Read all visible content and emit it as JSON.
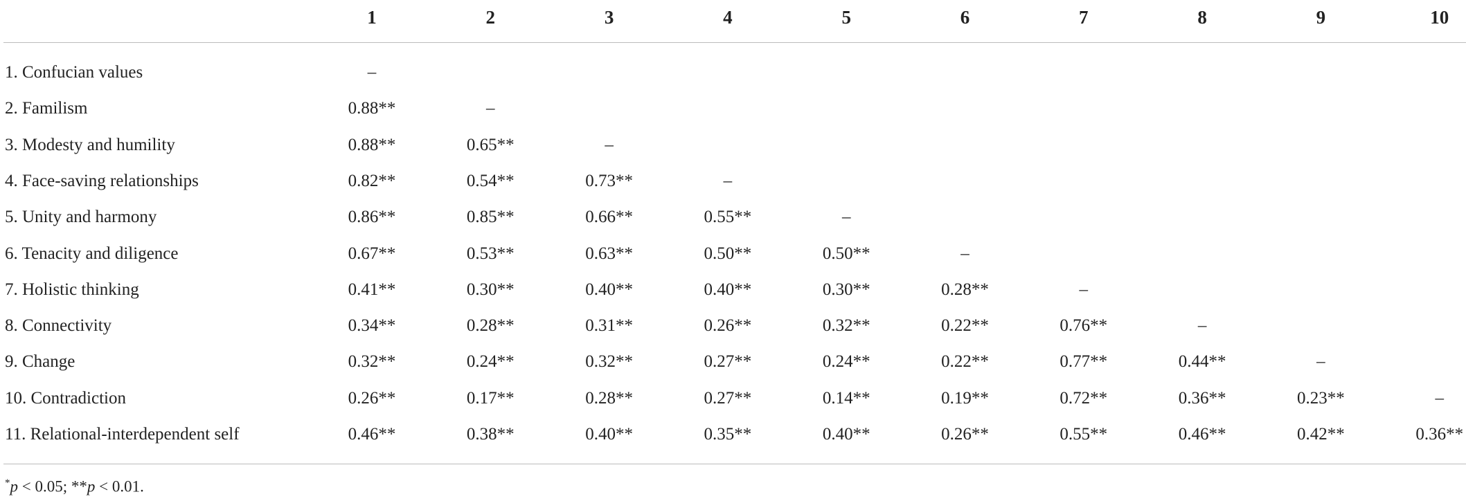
{
  "table": {
    "columns": [
      "1",
      "2",
      "3",
      "4",
      "5",
      "6",
      "7",
      "8",
      "9",
      "10"
    ],
    "rows": [
      {
        "label": "1. Confucian values",
        "cells": [
          "–"
        ]
      },
      {
        "label": "2. Familism",
        "cells": [
          "0.88**",
          "–"
        ]
      },
      {
        "label": "3. Modesty and humility",
        "cells": [
          "0.88**",
          "0.65**",
          "–"
        ]
      },
      {
        "label": "4. Face-saving relationships",
        "cells": [
          "0.82**",
          "0.54**",
          "0.73**",
          "–"
        ]
      },
      {
        "label": "5. Unity and harmony",
        "cells": [
          "0.86**",
          "0.85**",
          "0.66**",
          "0.55**",
          "–"
        ]
      },
      {
        "label": "6. Tenacity and diligence",
        "cells": [
          "0.67**",
          "0.53**",
          "0.63**",
          "0.50**",
          "0.50**",
          "–"
        ]
      },
      {
        "label": "7. Holistic thinking",
        "cells": [
          "0.41**",
          "0.30**",
          "0.40**",
          "0.40**",
          "0.30**",
          "0.28**",
          "–"
        ]
      },
      {
        "label": "8. Connectivity",
        "cells": [
          "0.34**",
          "0.28**",
          "0.31**",
          "0.26**",
          "0.32**",
          "0.22**",
          "0.76**",
          "–"
        ]
      },
      {
        "label": "9. Change",
        "cells": [
          "0.32**",
          "0.24**",
          "0.32**",
          "0.27**",
          "0.24**",
          "0.22**",
          "0.77**",
          "0.44**",
          "–"
        ]
      },
      {
        "label": "10. Contradiction",
        "cells": [
          "0.26**",
          "0.17**",
          "0.28**",
          "0.27**",
          "0.14**",
          "0.19**",
          "0.72**",
          "0.36**",
          "0.23**",
          "–"
        ]
      },
      {
        "label": "11. Relational-interdependent self",
        "cells": [
          "0.46**",
          "0.38**",
          "0.40**",
          "0.35**",
          "0.40**",
          "0.26**",
          "0.55**",
          "0.46**",
          "0.42**",
          "0.36**"
        ]
      }
    ],
    "footnote": [
      "*",
      "p",
      " < 0.05; **",
      "p",
      " < 0.01."
    ]
  }
}
